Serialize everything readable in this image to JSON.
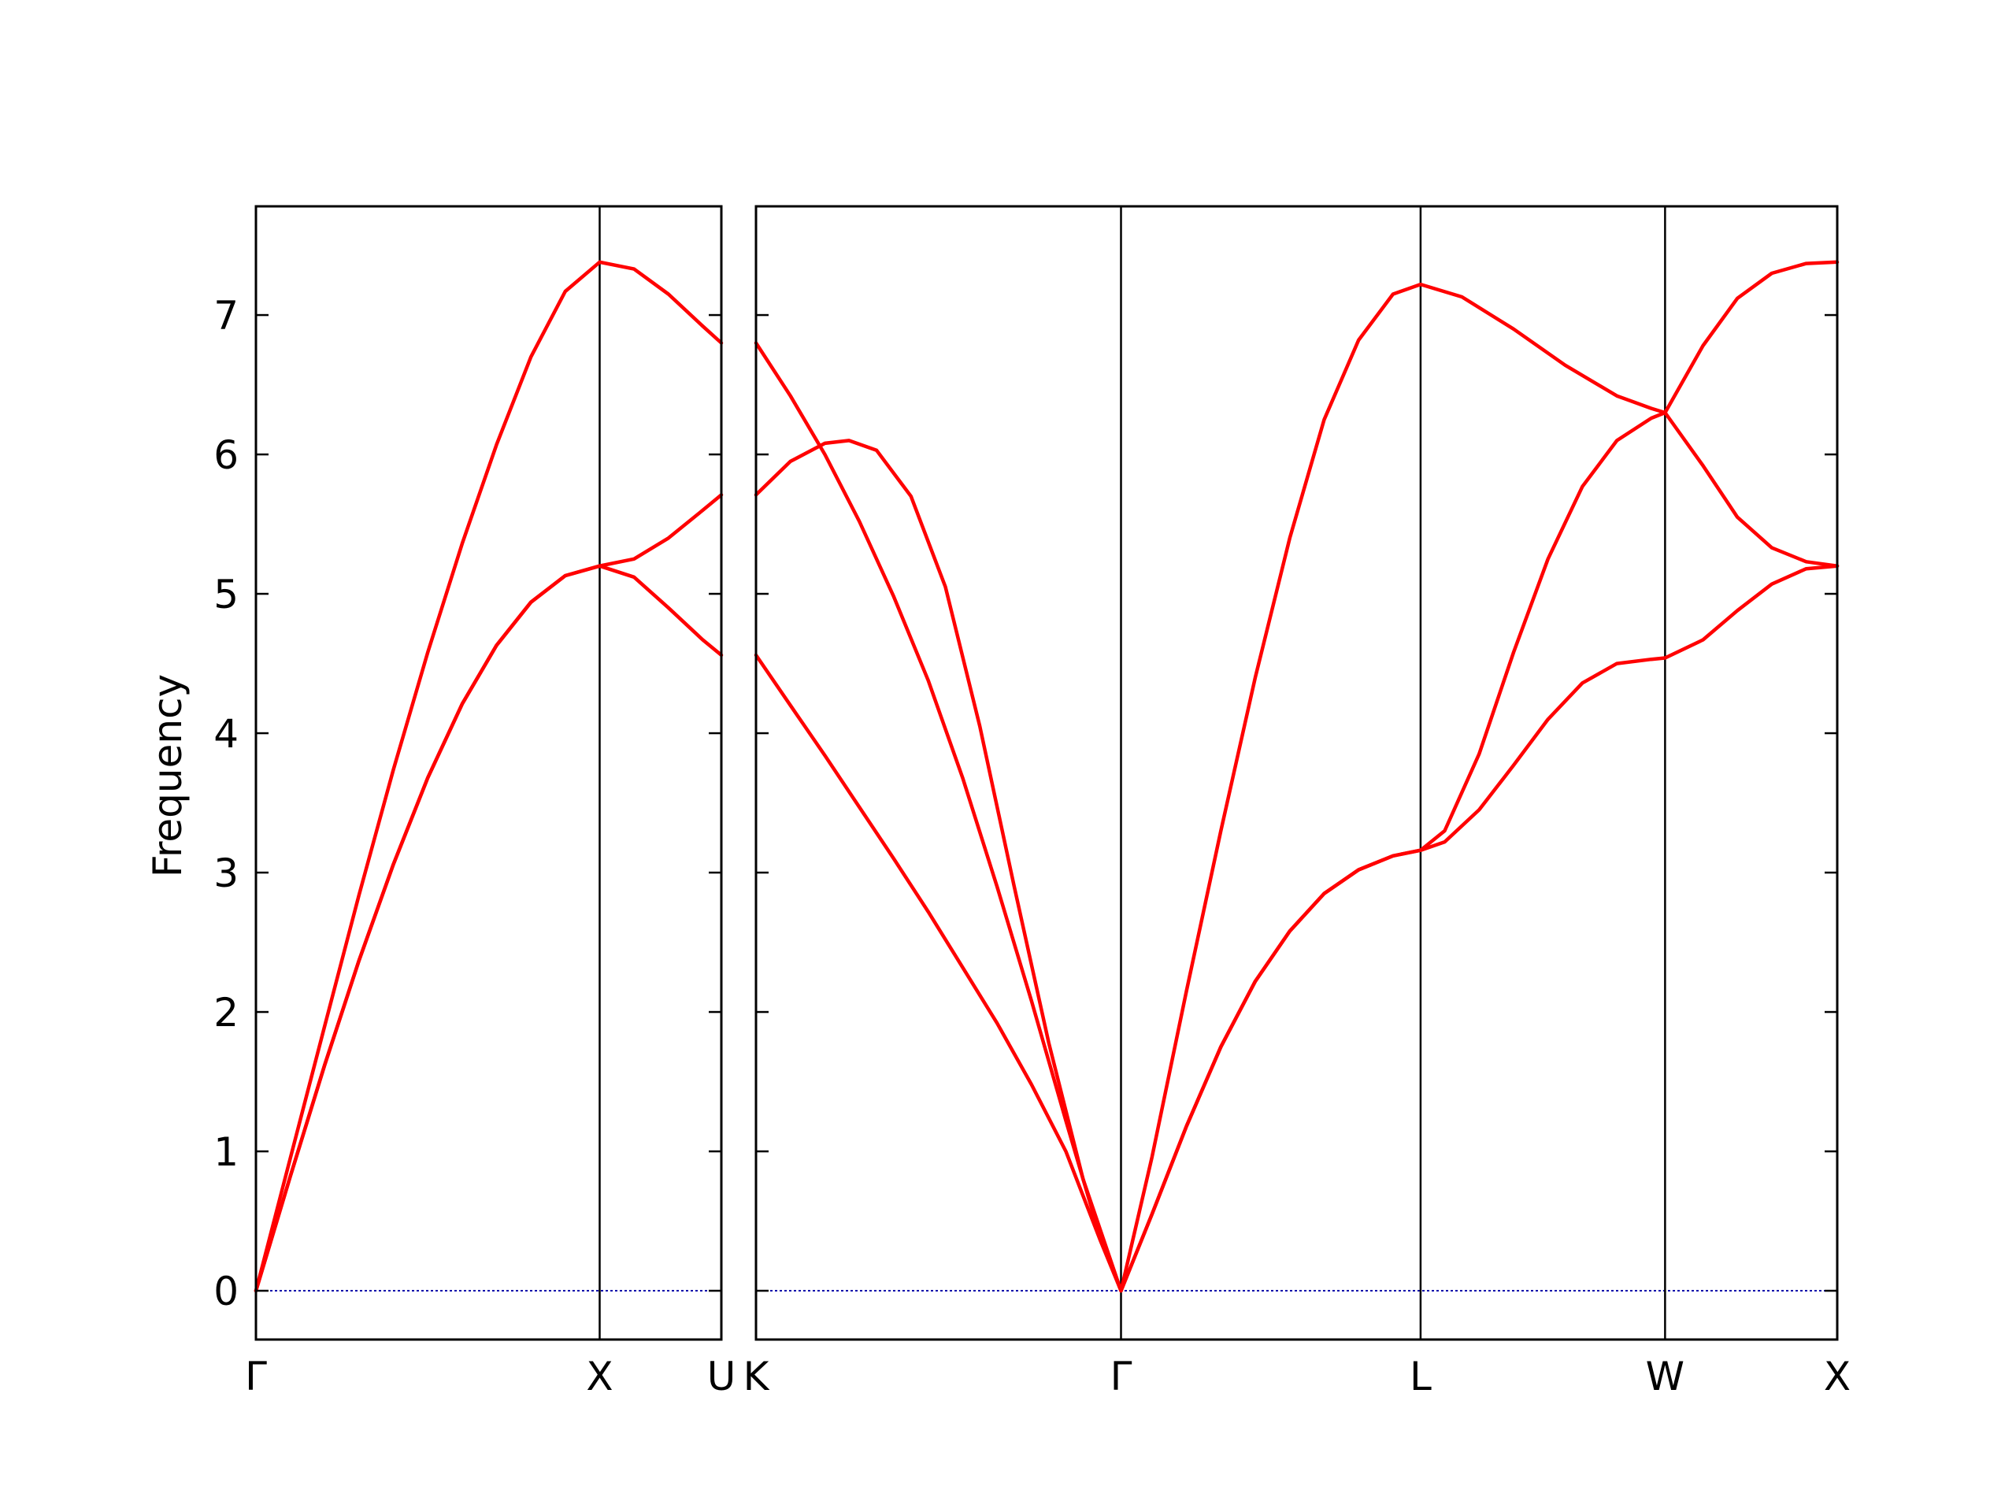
{
  "chart_data": {
    "type": "line",
    "ylabel": "Frequency",
    "ylim": [
      -0.35,
      7.78
    ],
    "yticks": [
      0,
      1,
      2,
      3,
      4,
      5,
      6,
      7
    ],
    "zero_line_color": "#0000aa",
    "branch_color": "#ff0000",
    "panels": [
      {
        "xticks": [
          {
            "label": "Γ",
            "x": 0.0
          },
          {
            "label": "X",
            "x": 1.0
          },
          {
            "label": "U",
            "x": 1.354
          }
        ],
        "xlim": [
          0.0,
          1.354
        ],
        "series": [
          {
            "values": [
              [
                0.0,
                0
              ],
              [
                0.1,
                0.95
              ],
              [
                0.2,
                1.9
              ],
              [
                0.3,
                2.84
              ],
              [
                0.4,
                3.74
              ],
              [
                0.5,
                4.58
              ],
              [
                0.6,
                5.36
              ],
              [
                0.7,
                6.07
              ],
              [
                0.8,
                6.7
              ],
              [
                0.9,
                7.17
              ],
              [
                1.0,
                7.38
              ],
              [
                1.1,
                7.33
              ],
              [
                1.2,
                7.15
              ],
              [
                1.3,
                6.92
              ],
              [
                1.354,
                6.8
              ]
            ]
          },
          {
            "values": [
              [
                0.0,
                0
              ],
              [
                0.1,
                0.82
              ],
              [
                0.2,
                1.62
              ],
              [
                0.3,
                2.37
              ],
              [
                0.4,
                3.06
              ],
              [
                0.5,
                3.68
              ],
              [
                0.6,
                4.21
              ],
              [
                0.7,
                4.63
              ],
              [
                0.8,
                4.94
              ],
              [
                0.9,
                5.13
              ],
              [
                1.0,
                5.2
              ],
              [
                1.1,
                5.25
              ],
              [
                1.2,
                5.4
              ],
              [
                1.3,
                5.6
              ],
              [
                1.354,
                5.71
              ]
            ]
          },
          {
            "values": [
              [
                0.0,
                0
              ],
              [
                0.1,
                0.82
              ],
              [
                0.2,
                1.62
              ],
              [
                0.3,
                2.37
              ],
              [
                0.4,
                3.06
              ],
              [
                0.5,
                3.68
              ],
              [
                0.6,
                4.21
              ],
              [
                0.7,
                4.63
              ],
              [
                0.8,
                4.94
              ],
              [
                0.9,
                5.13
              ],
              [
                1.0,
                5.2
              ],
              [
                1.1,
                5.12
              ],
              [
                1.2,
                4.9
              ],
              [
                1.3,
                4.67
              ],
              [
                1.354,
                4.56
              ]
            ]
          }
        ]
      },
      {
        "xticks": [
          {
            "label": "K",
            "x": 0.0
          },
          {
            "label": "Γ",
            "x": 1.06
          },
          {
            "label": "L",
            "x": 1.93
          },
          {
            "label": "W",
            "x": 2.64
          },
          {
            "label": "X",
            "x": 3.14
          }
        ],
        "xlim": [
          0.0,
          3.14
        ],
        "series": [
          {
            "values": [
              [
                0.0,
                6.8
              ],
              [
                0.1,
                6.42
              ],
              [
                0.2,
                6.0
              ],
              [
                0.3,
                5.52
              ],
              [
                0.4,
                4.98
              ],
              [
                0.5,
                4.38
              ],
              [
                0.6,
                3.68
              ],
              [
                0.7,
                2.9
              ],
              [
                0.8,
                2.08
              ],
              [
                0.9,
                1.22
              ],
              [
                1.0,
                0.38
              ],
              [
                1.06,
                0
              ],
              [
                1.15,
                0.96
              ],
              [
                1.25,
                2.15
              ],
              [
                1.35,
                3.3
              ],
              [
                1.45,
                4.4
              ],
              [
                1.55,
                5.4
              ],
              [
                1.65,
                6.25
              ],
              [
                1.75,
                6.82
              ],
              [
                1.85,
                7.15
              ],
              [
                1.93,
                7.22
              ],
              [
                2.05,
                7.13
              ],
              [
                2.2,
                6.9
              ],
              [
                2.35,
                6.64
              ],
              [
                2.5,
                6.42
              ],
              [
                2.6,
                6.33
              ],
              [
                2.64,
                6.3
              ],
              [
                2.75,
                6.78
              ],
              [
                2.85,
                7.12
              ],
              [
                2.95,
                7.3
              ],
              [
                3.05,
                7.37
              ],
              [
                3.14,
                7.38
              ]
            ]
          },
          {
            "values": [
              [
                0.0,
                5.71
              ],
              [
                0.1,
                5.95
              ],
              [
                0.2,
                6.08
              ],
              [
                0.27,
                6.1
              ],
              [
                0.35,
                6.03
              ],
              [
                0.45,
                5.7
              ],
              [
                0.55,
                5.05
              ],
              [
                0.65,
                4.05
              ],
              [
                0.75,
                2.9
              ],
              [
                0.85,
                1.78
              ],
              [
                0.95,
                0.8
              ],
              [
                1.06,
                0
              ],
              [
                1.15,
                0.55
              ],
              [
                1.25,
                1.18
              ],
              [
                1.35,
                1.75
              ],
              [
                1.45,
                2.22
              ],
              [
                1.55,
                2.58
              ],
              [
                1.65,
                2.85
              ],
              [
                1.75,
                3.02
              ],
              [
                1.85,
                3.12
              ],
              [
                1.93,
                3.16
              ],
              [
                2.0,
                3.3
              ],
              [
                2.1,
                3.85
              ],
              [
                2.2,
                4.58
              ],
              [
                2.3,
                5.25
              ],
              [
                2.4,
                5.77
              ],
              [
                2.5,
                6.1
              ],
              [
                2.6,
                6.26
              ],
              [
                2.64,
                6.3
              ],
              [
                2.75,
                5.92
              ],
              [
                2.85,
                5.55
              ],
              [
                2.95,
                5.33
              ],
              [
                3.05,
                5.23
              ],
              [
                3.14,
                5.2
              ]
            ]
          },
          {
            "values": [
              [
                0.0,
                4.56
              ],
              [
                0.1,
                4.2
              ],
              [
                0.2,
                3.84
              ],
              [
                0.3,
                3.47
              ],
              [
                0.4,
                3.1
              ],
              [
                0.5,
                2.72
              ],
              [
                0.6,
                2.32
              ],
              [
                0.7,
                1.92
              ],
              [
                0.8,
                1.48
              ],
              [
                0.9,
                1.0
              ],
              [
                1.0,
                0.36
              ],
              [
                1.06,
                0
              ],
              [
                1.15,
                0.55
              ],
              [
                1.25,
                1.18
              ],
              [
                1.35,
                1.75
              ],
              [
                1.45,
                2.22
              ],
              [
                1.55,
                2.58
              ],
              [
                1.65,
                2.85
              ],
              [
                1.75,
                3.02
              ],
              [
                1.85,
                3.12
              ],
              [
                1.93,
                3.16
              ],
              [
                2.0,
                3.22
              ],
              [
                2.1,
                3.45
              ],
              [
                2.2,
                3.77
              ],
              [
                2.3,
                4.1
              ],
              [
                2.4,
                4.36
              ],
              [
                2.5,
                4.5
              ],
              [
                2.6,
                4.53
              ],
              [
                2.64,
                4.54
              ],
              [
                2.75,
                4.67
              ],
              [
                2.85,
                4.88
              ],
              [
                2.95,
                5.07
              ],
              [
                3.05,
                5.18
              ],
              [
                3.14,
                5.2
              ]
            ]
          }
        ]
      }
    ]
  }
}
